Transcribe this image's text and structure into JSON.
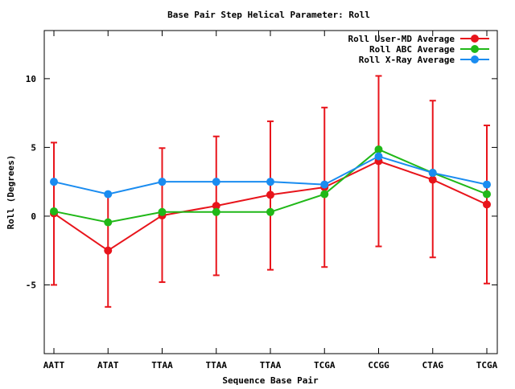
{
  "chart_data": {
    "type": "line",
    "title": "Base Pair Step Helical Parameter: Roll",
    "xlabel": "Sequence Base Pair",
    "ylabel": "Roll (Degrees)",
    "categories": [
      "AATT",
      "ATAT",
      "TTAA",
      "TTAA",
      "TTAA",
      "TCGA",
      "CCGG",
      "CTAG",
      "TCGA"
    ],
    "ylim": [
      -10,
      13.5
    ],
    "yticks": [
      -5,
      0,
      5,
      10
    ],
    "ytick_labels": [
      "-5",
      "0",
      "5",
      "10"
    ],
    "grid": false,
    "legend_position": "top-right",
    "series": [
      {
        "name": "Roll User-MD Average",
        "color": "#e8141b",
        "values": [
          0.2,
          -2.5,
          0.05,
          0.75,
          1.55,
          2.1,
          4.0,
          2.65,
          0.85
        ],
        "error_low": [
          -5.0,
          -6.6,
          -4.8,
          -4.3,
          -3.9,
          -3.7,
          -2.2,
          -3.0,
          -4.9
        ],
        "error_high": [
          5.35,
          1.6,
          4.95,
          5.8,
          6.9,
          7.9,
          10.2,
          8.4,
          6.6
        ]
      },
      {
        "name": "Roll ABC Average",
        "color": "#20b818",
        "values": [
          0.35,
          -0.45,
          0.3,
          0.3,
          0.3,
          1.6,
          4.85,
          3.15,
          1.6
        ]
      },
      {
        "name": "Roll X-Ray Average",
        "color": "#1a8cf0",
        "values": [
          2.5,
          1.6,
          2.5,
          2.5,
          2.5,
          2.3,
          4.35,
          3.15,
          2.3
        ]
      }
    ]
  }
}
